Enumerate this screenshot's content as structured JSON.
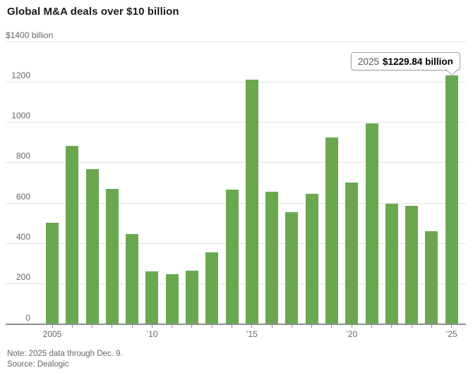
{
  "title": "Global M&A deals over $10 billion",
  "tooltip": {
    "year_label": "2025",
    "value_label": "$1229.84 billion"
  },
  "footnote": {
    "note": "Note: 2025 data through Dec. 9.",
    "source": "Source: Dealogic"
  },
  "colors": {
    "bar_green": "#6aa850",
    "gridline": "#e4e4e4",
    "axis": "#8c8c8c",
    "text_muted": "#666666",
    "title_text": "#1a1a1a",
    "tooltip_border": "#a3a3a3"
  },
  "chart_data": {
    "type": "bar",
    "title": "Global M&A deals over $10 billion",
    "unit": "$ billion",
    "y_top_label": "$1400 billion",
    "ylim": [
      0,
      1400
    ],
    "grid": "horizontal",
    "legend": "none",
    "y_ticks": [
      0,
      200,
      400,
      600,
      800,
      1000,
      1200,
      1400
    ],
    "y_tick_labels": [
      {
        "value": 0,
        "label": "0"
      },
      {
        "value": 200,
        "label": "200"
      },
      {
        "value": 400,
        "label": "400"
      },
      {
        "value": 600,
        "label": "600"
      },
      {
        "value": 800,
        "label": "800"
      },
      {
        "value": 1000,
        "label": "1000"
      },
      {
        "value": 1200,
        "label": "1200"
      }
    ],
    "categories": [
      2005,
      2006,
      2007,
      2008,
      2009,
      2010,
      2011,
      2012,
      2013,
      2014,
      2015,
      2016,
      2017,
      2018,
      2019,
      2020,
      2021,
      2022,
      2023,
      2024,
      2025
    ],
    "values": [
      500,
      880,
      765,
      670,
      445,
      260,
      245,
      265,
      355,
      665,
      1210,
      655,
      555,
      645,
      925,
      700,
      995,
      595,
      585,
      460,
      1229.84
    ],
    "x_tick_labels": [
      {
        "index": 0,
        "label": "2005"
      },
      {
        "index": 5,
        "label": "’10"
      },
      {
        "index": 10,
        "label": "’15"
      },
      {
        "index": 15,
        "label": "’20"
      },
      {
        "index": 20,
        "label": "’25"
      }
    ],
    "annotation": {
      "category": 2025,
      "text": "2025 $1229.84 billion"
    }
  }
}
